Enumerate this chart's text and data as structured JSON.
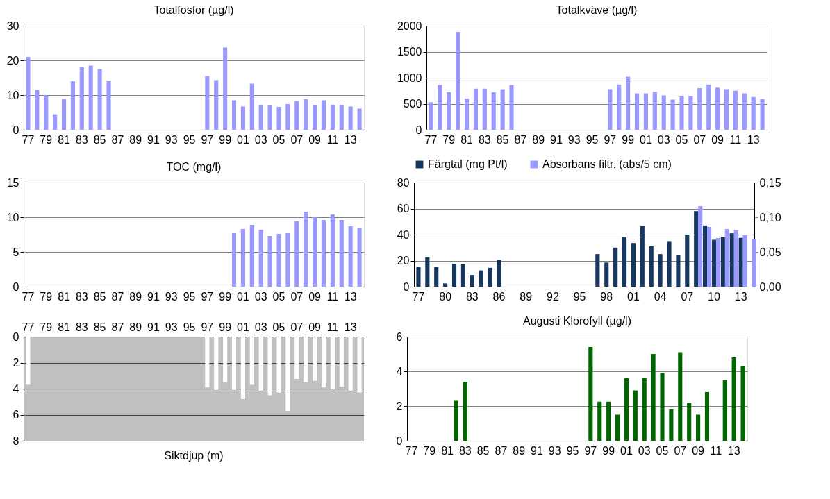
{
  "chart_data": [
    {
      "type": "bar",
      "title": "Totalfosfor (µg/l)",
      "categories": [
        "77",
        null,
        "79",
        null,
        "81",
        null,
        "83",
        null,
        "85",
        null,
        "87",
        null,
        "89",
        null,
        "91",
        null,
        "93",
        null,
        "95",
        null,
        "97",
        null,
        "99",
        null,
        "01",
        null,
        "03",
        null,
        "05",
        null,
        "07",
        null,
        "09",
        null,
        "11",
        null,
        "13",
        null
      ],
      "values": [
        21,
        11.5,
        10,
        4.5,
        9,
        14,
        18,
        18.5,
        17.5,
        14,
        null,
        null,
        null,
        null,
        null,
        null,
        null,
        null,
        null,
        null,
        15.5,
        14.3,
        23.7,
        8.5,
        6.7,
        13.3,
        7.2,
        7,
        6.6,
        7.4,
        8.3,
        8.8,
        7.2,
        8.5,
        7.2,
        7.2,
        6.7,
        6.1
      ],
      "color": "#9999ff",
      "ylim": [
        0,
        30
      ],
      "yticks": [
        0,
        10,
        20,
        30
      ],
      "grid": "y"
    },
    {
      "type": "bar",
      "title": "Totalkväve (µg/l)",
      "categories": [
        "77",
        null,
        "79",
        null,
        "81",
        null,
        "83",
        null,
        "85",
        null,
        "87",
        null,
        "89",
        null,
        "91",
        null,
        "93",
        null,
        "95",
        null,
        "97",
        null,
        "99",
        null,
        "01",
        null,
        "03",
        null,
        "05",
        null,
        "07",
        null,
        "09",
        null,
        "11",
        null,
        "13",
        null
      ],
      "values": [
        530,
        860,
        720,
        1880,
        600,
        790,
        790,
        720,
        780,
        860,
        null,
        null,
        null,
        null,
        null,
        null,
        null,
        null,
        null,
        null,
        780,
        870,
        1020,
        700,
        700,
        730,
        660,
        580,
        640,
        650,
        800,
        870,
        810,
        780,
        750,
        700,
        630,
        590
      ],
      "color": "#9999ff",
      "ylim": [
        0,
        2000
      ],
      "yticks": [
        0,
        500,
        1000,
        1500,
        2000
      ],
      "grid": "y"
    },
    {
      "type": "bar",
      "title": "TOC (mg/l)",
      "categories": [
        "77",
        null,
        "79",
        null,
        "81",
        null,
        "83",
        null,
        "85",
        null,
        "87",
        null,
        "89",
        null,
        "91",
        null,
        "93",
        null,
        "95",
        null,
        "97",
        null,
        "99",
        null,
        "01",
        null,
        "03",
        null,
        "05",
        null,
        "07",
        null,
        "09",
        null,
        "11",
        null,
        "13",
        null
      ],
      "values": [
        null,
        null,
        null,
        null,
        null,
        null,
        null,
        null,
        null,
        null,
        null,
        null,
        null,
        null,
        null,
        null,
        null,
        null,
        null,
        null,
        null,
        null,
        null,
        7.7,
        8.3,
        8.9,
        8.2,
        7.3,
        7.6,
        7.7,
        9.4,
        10.8,
        10.1,
        9.6,
        10.4,
        9.6,
        8.7,
        8.5
      ],
      "color": "#9999ff",
      "ylim": [
        0,
        15
      ],
      "yticks": [
        0,
        5,
        10,
        15
      ],
      "grid": "y"
    },
    {
      "type": "bar",
      "categories": [
        "77",
        null,
        null,
        "80",
        null,
        null,
        "83",
        null,
        null,
        "86",
        null,
        null,
        "89",
        null,
        null,
        "92",
        null,
        null,
        "95",
        null,
        null,
        "98",
        null,
        null,
        "01",
        null,
        null,
        "04",
        null,
        null,
        "07",
        null,
        null,
        "10",
        null,
        null,
        "13",
        null
      ],
      "series": [
        {
          "name": "Färgtal (mg Pt/l)",
          "color": "#17375e",
          "values": [
            15,
            22.5,
            15,
            2.5,
            17.5,
            17.5,
            9,
            12.5,
            14.5,
            20.5,
            null,
            null,
            null,
            null,
            null,
            null,
            null,
            null,
            null,
            null,
            25,
            18.5,
            30,
            38,
            33.5,
            46.5,
            31,
            25,
            35,
            24,
            40,
            58,
            47,
            36,
            38,
            41,
            37.5,
            null
          ]
        },
        {
          "name": "Absorbans filtr. (abs/5 cm)",
          "color": "#9999ff",
          "axis": "y2",
          "values": [
            null,
            null,
            null,
            null,
            null,
            null,
            null,
            null,
            null,
            null,
            null,
            null,
            null,
            null,
            null,
            null,
            null,
            null,
            null,
            null,
            null,
            null,
            null,
            null,
            null,
            null,
            null,
            null,
            null,
            null,
            null,
            0.116,
            0.086,
            0.07,
            0.083,
            0.081,
            0.075,
            0.069
          ]
        }
      ],
      "ylim": [
        0,
        80
      ],
      "yticks": [
        0,
        20,
        40,
        60,
        80
      ],
      "y2lim": [
        0,
        0.15
      ],
      "y2ticks": [
        {
          "value": 0,
          "label": "0,00"
        },
        {
          "value": 0.05,
          "label": "0,05"
        },
        {
          "value": 0.1,
          "label": "0,10"
        },
        {
          "value": 0.15,
          "label": "0,15"
        }
      ],
      "grid": "y",
      "legend": "top"
    },
    {
      "type": "bar",
      "title": "Siktdjup (m)",
      "categories": [
        "77",
        null,
        "79",
        null,
        "81",
        null,
        "83",
        null,
        "85",
        null,
        "87",
        null,
        "89",
        null,
        "91",
        null,
        "93",
        null,
        "95",
        null,
        "97",
        null,
        "99",
        null,
        "01",
        null,
        "03",
        null,
        "05",
        null,
        "07",
        null,
        "09",
        null,
        "11",
        null,
        "13",
        null
      ],
      "values": [
        3.7,
        null,
        null,
        null,
        null,
        null,
        null,
        null,
        null,
        null,
        null,
        null,
        null,
        null,
        null,
        null,
        null,
        null,
        null,
        null,
        3.9,
        4.1,
        3.5,
        4.1,
        4.8,
        3.7,
        4.15,
        4.5,
        4.3,
        5.7,
        3.25,
        3.5,
        3.4,
        3.9,
        4.05,
        3.85,
        4.15,
        4.3
      ],
      "color": "#ffffff",
      "ylim": [
        8,
        0
      ],
      "yticks": [
        0,
        2,
        4,
        6,
        8
      ],
      "grid": "y"
    },
    {
      "type": "bar",
      "title": "Augusti  Klorofyll (µg/l)",
      "categories": [
        "77",
        null,
        "79",
        null,
        "81",
        null,
        "83",
        null,
        "85",
        null,
        "87",
        null,
        "89",
        null,
        "91",
        null,
        "93",
        null,
        "95",
        null,
        "97",
        null,
        "99",
        null,
        "01",
        null,
        "03",
        null,
        "05",
        null,
        "07",
        null,
        "09",
        null,
        "11",
        null,
        "13",
        null
      ],
      "values": [
        null,
        null,
        null,
        null,
        null,
        2.3,
        3.4,
        null,
        null,
        null,
        null,
        null,
        null,
        null,
        null,
        null,
        null,
        null,
        null,
        null,
        5.4,
        2.25,
        2.25,
        1.5,
        3.6,
        2.9,
        3.6,
        5.0,
        3.9,
        1.8,
        5.1,
        2.2,
        1.5,
        2.8,
        null,
        3.5,
        4.8,
        4.3
      ],
      "color": "#006600",
      "ylim": [
        0,
        6
      ],
      "yticks": [
        0,
        2,
        4,
        6
      ],
      "grid": "y"
    }
  ]
}
